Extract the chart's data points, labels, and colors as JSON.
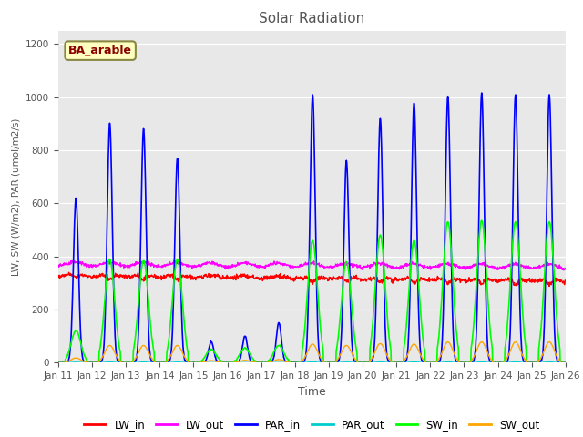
{
  "title": "Solar Radiation",
  "xlabel": "Time",
  "ylabel": "LW, SW (W/m2), PAR (umol/m2/s)",
  "ylim": [
    0,
    1250
  ],
  "yticks": [
    0,
    200,
    400,
    600,
    800,
    1000,
    1200
  ],
  "start_day": 11,
  "end_day": 26,
  "dt_hours": 0.25,
  "annotation_text": "BA_arable",
  "colors": {
    "LW_in": "#ff0000",
    "LW_out": "#ff00ff",
    "PAR_in": "#0000ff",
    "PAR_out": "#00cccc",
    "SW_in": "#00ff00",
    "SW_out": "#ffa500"
  },
  "linewidths": {
    "LW_in": 1.0,
    "LW_out": 1.0,
    "PAR_in": 1.2,
    "PAR_out": 1.0,
    "SW_in": 1.2,
    "SW_out": 1.0
  },
  "bg_color": "#e8e8e8",
  "LW_in_base": 330,
  "LW_out_base": 372,
  "PAR_peaks": {
    "11": 620,
    "12": 900,
    "13": 880,
    "14": 770,
    "15": 80,
    "16": 100,
    "17": 150,
    "18": 1010,
    "19": 760,
    "20": 920,
    "21": 980,
    "22": 1005,
    "23": 1015,
    "24": 1010,
    "25": 1010
  },
  "SW_in_peaks": {
    "11": 120,
    "12": 390,
    "13": 385,
    "14": 390,
    "15": 50,
    "16": 55,
    "17": 65,
    "18": 460,
    "19": 380,
    "20": 480,
    "21": 460,
    "22": 530,
    "23": 535,
    "24": 530,
    "25": 530
  },
  "SW_out_peaks": {
    "11": 18,
    "12": 65,
    "13": 65,
    "14": 65,
    "15": 8,
    "16": 9,
    "17": 12,
    "18": 70,
    "19": 65,
    "20": 72,
    "21": 70,
    "22": 78,
    "23": 78,
    "24": 78,
    "25": 78
  }
}
